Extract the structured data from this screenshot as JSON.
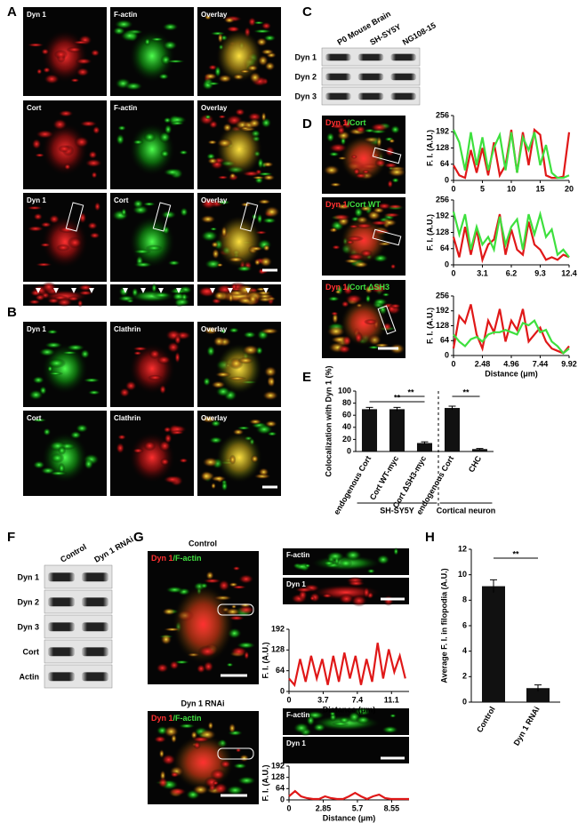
{
  "panel_labels": [
    "A",
    "B",
    "C",
    "D",
    "E",
    "F",
    "G",
    "H"
  ],
  "panel_a": {
    "labels": [
      [
        "Dyn 1",
        "F-actin",
        "Overlay"
      ],
      [
        "Cort",
        "F-actin",
        "Overlay"
      ],
      [
        "Dyn 1",
        "Cort",
        "Overlay"
      ]
    ]
  },
  "panel_b": {
    "labels": [
      [
        "Dyn 1",
        "Clathrin",
        "Overlay"
      ],
      [
        "Cort",
        "Clathrin",
        "Overlay"
      ]
    ]
  },
  "panel_c": {
    "columns": [
      "P0 Mouse Brain",
      "SH-SY5Y",
      "NG108-15"
    ],
    "rows": [
      "Dyn 1",
      "Dyn 2",
      "Dyn 3"
    ]
  },
  "panel_d": {
    "labels": [
      [
        "Dyn 1",
        "/Cort"
      ],
      [
        "Dyn 1",
        "/Cort WT"
      ],
      [
        "Dyn 1",
        "/Cort ΔSH3"
      ]
    ]
  },
  "panel_f": {
    "columns": [
      "Control",
      "Dyn 1 RNAi"
    ],
    "rows": [
      "Dyn 1",
      "Dyn 2",
      "Dyn 3",
      "Cort",
      "Actin"
    ]
  },
  "panel_g": {
    "titles": [
      "Control",
      "Dyn 1 RNAi"
    ],
    "labels": [
      [
        "Dyn 1",
        "/F-actin"
      ],
      [
        "Dyn 1",
        "/F-actin"
      ]
    ],
    "strip_labels": [
      [
        "F-actin",
        "Dyn 1"
      ],
      [
        "F-actin",
        "Dyn 1"
      ]
    ]
  },
  "chart_data": [
    {
      "type": "line",
      "y_label": "F. I. (A.U.)",
      "x": [
        0,
        1,
        2,
        3,
        4,
        5,
        6,
        7,
        8,
        9,
        10,
        11,
        12,
        13,
        14,
        15,
        16,
        17,
        18,
        19,
        20
      ],
      "series": [
        {
          "color": "#e01818",
          "values": [
            60,
            20,
            10,
            120,
            30,
            128,
            20,
            150,
            20,
            60,
            200,
            30,
            190,
            60,
            200,
            180,
            20,
            10,
            10,
            15,
            190
          ]
        },
        {
          "color": "#3ee03e",
          "values": [
            200,
            150,
            40,
            190,
            60,
            170,
            40,
            130,
            180,
            40,
            190,
            30,
            170,
            120,
            190,
            60,
            140,
            30,
            10,
            10,
            20
          ]
        }
      ],
      "xlim": [
        0,
        20
      ],
      "xticks": [
        0,
        5,
        10,
        15,
        20
      ],
      "ylim": [
        0,
        256
      ],
      "yticks": [
        0,
        64,
        128,
        192,
        256
      ]
    },
    {
      "type": "line",
      "y_label": "F. I. (A.U.)",
      "x": [
        0,
        0.62,
        1.24,
        1.86,
        2.48,
        3.1,
        3.72,
        4.34,
        4.96,
        5.58,
        6.2,
        6.82,
        7.44,
        8.06,
        8.68,
        9.3,
        9.92,
        10.54,
        11.16,
        11.78,
        12.4
      ],
      "series": [
        {
          "color": "#e01818",
          "values": [
            110,
            30,
            150,
            40,
            140,
            20,
            80,
            100,
            200,
            40,
            140,
            60,
            40,
            170,
            80,
            60,
            20,
            30,
            20,
            40,
            30
          ]
        },
        {
          "color": "#3ee03e",
          "values": [
            210,
            120,
            200,
            60,
            150,
            80,
            110,
            60,
            190,
            80,
            150,
            180,
            60,
            200,
            120,
            200,
            110,
            140,
            40,
            60,
            30
          ]
        }
      ],
      "xlim": [
        0,
        12.4
      ],
      "xticks": [
        0,
        3.1,
        6.2,
        9.3,
        12.4
      ],
      "ylim": [
        0,
        256
      ],
      "yticks": [
        0,
        64,
        128,
        192,
        256
      ]
    },
    {
      "type": "line",
      "y_label": "F. I. (A.U.)",
      "x_label": "Distance (μm)",
      "x": [
        0,
        0.496,
        0.992,
        1.488,
        1.984,
        2.48,
        2.976,
        3.472,
        3.968,
        4.464,
        4.96,
        5.456,
        5.952,
        6.448,
        6.944,
        7.44,
        7.936,
        8.432,
        8.928,
        9.424,
        9.92
      ],
      "series": [
        {
          "color": "#e01818",
          "values": [
            30,
            170,
            140,
            220,
            90,
            30,
            150,
            100,
            200,
            60,
            150,
            110,
            200,
            60,
            90,
            120,
            60,
            30,
            20,
            10,
            40
          ]
        },
        {
          "color": "#3ee03e",
          "values": [
            90,
            60,
            40,
            70,
            80,
            60,
            90,
            100,
            100,
            110,
            100,
            90,
            140,
            130,
            150,
            100,
            110,
            60,
            40,
            10,
            30
          ]
        }
      ],
      "xlim": [
        0,
        9.92
      ],
      "xticks": [
        0,
        2.48,
        4.96,
        7.44,
        9.92
      ],
      "ylim": [
        0,
        256
      ],
      "yticks": [
        0,
        64,
        128,
        192,
        256
      ]
    },
    {
      "type": "bar",
      "y_label": "Colocalization with Dyn 1 (%)",
      "categories": [
        "endogenous Cort",
        "Cort WT-myc",
        "Cort ΔSH3-myc",
        "endogenous Cort",
        "CHC"
      ],
      "values": [
        70,
        70,
        14,
        72,
        4
      ],
      "errors": [
        3,
        3,
        2,
        3,
        1
      ],
      "color": "#111111",
      "groups": [
        "SH-SY5Y",
        "Cortical neuron"
      ],
      "annotations": [
        "**",
        "**",
        "**"
      ],
      "ylim": [
        0,
        100
      ],
      "yticks": [
        0,
        20,
        40,
        60,
        80,
        100
      ]
    },
    {
      "type": "line",
      "y_label": "F. I. (A.U.)",
      "x_label": "Distance (μm)",
      "x": [
        0,
        0.6,
        1.2,
        1.8,
        2.4,
        3,
        3.6,
        4.2,
        4.8,
        5.4,
        6,
        6.6,
        7.2,
        7.8,
        8.4,
        9,
        9.6,
        10.2,
        10.8,
        11.4,
        12,
        12.6
      ],
      "series": [
        {
          "color": "#e01818",
          "values": [
            40,
            20,
            100,
            30,
            110,
            40,
            100,
            20,
            110,
            30,
            120,
            40,
            110,
            20,
            100,
            30,
            150,
            40,
            130,
            60,
            110,
            40
          ]
        }
      ],
      "xlim": [
        0,
        13
      ],
      "xticks": [
        0,
        3.7,
        7.4,
        11.1
      ],
      "ylim": [
        0,
        192
      ],
      "yticks": [
        0,
        64,
        128,
        192
      ]
    },
    {
      "type": "line",
      "y_label": "F. I. (A.U.)",
      "x_label": "Distance (μm)",
      "x": [
        0,
        0.5,
        1,
        1.5,
        2,
        2.5,
        3,
        3.5,
        4,
        4.5,
        5,
        5.5,
        6,
        6.5,
        7,
        7.5,
        8,
        8.5,
        9,
        9.5,
        10
      ],
      "series": [
        {
          "color": "#e01818",
          "values": [
            20,
            50,
            20,
            10,
            5,
            5,
            20,
            10,
            5,
            5,
            20,
            40,
            20,
            5,
            20,
            30,
            10,
            5,
            5,
            5,
            5
          ]
        }
      ],
      "xlim": [
        0,
        10
      ],
      "xticks": [
        0,
        2.85,
        5.7,
        8.55
      ],
      "ylim": [
        0,
        192
      ],
      "yticks": [
        0,
        64,
        128,
        192
      ]
    },
    {
      "type": "bar",
      "y_label": "Average F. I. in filopodia (A.U.)",
      "categories": [
        "Control",
        "Dyn 1 RNAi"
      ],
      "values": [
        9.1,
        1.1
      ],
      "errors": [
        0.5,
        0.25
      ],
      "color": "#111111",
      "annotations": [
        "**"
      ],
      "ylim": [
        0,
        12
      ],
      "yticks": [
        0,
        2,
        4,
        6,
        8,
        10,
        12
      ]
    }
  ]
}
